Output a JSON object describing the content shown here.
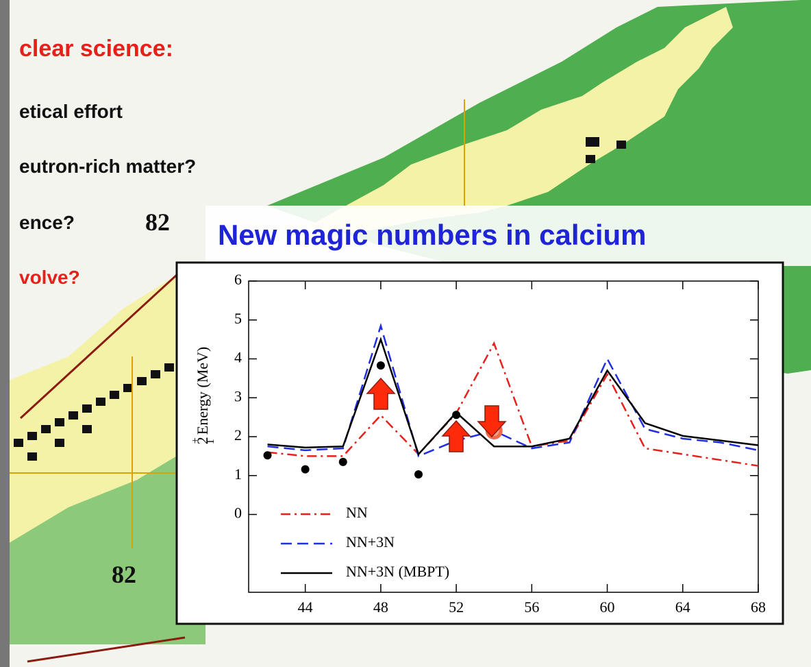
{
  "slide": {
    "heading": "clear science:",
    "bullets": [
      "etical effort",
      "eutron-rich matter?",
      "ence?",
      "volve?"
    ],
    "label_top": "82",
    "label_bottom": "82",
    "banner": "New magic numbers in calcium"
  },
  "chart_data": {
    "type": "line",
    "y_label": {
      "base": "2",
      "sup": "+",
      "sub": "1",
      "text": "Energy (MeV)"
    },
    "x": [
      42,
      44,
      46,
      48,
      50,
      52,
      54,
      56,
      58,
      60,
      62,
      64,
      66,
      68
    ],
    "xlim": [
      41,
      68
    ],
    "xticks": [
      44,
      48,
      52,
      56,
      60,
      64,
      68
    ],
    "ylim": [
      -2,
      6
    ],
    "yticks": [
      0,
      1,
      2,
      3,
      4,
      5,
      6
    ],
    "series": [
      {
        "name": "NN",
        "color": "#e8201c",
        "dash": "dashdot",
        "values": [
          1.6,
          1.5,
          1.5,
          2.55,
          1.55,
          2.6,
          4.4,
          1.75,
          1.9,
          3.6,
          1.7,
          1.55,
          1.4,
          1.25
        ]
      },
      {
        "name": "NN+3N",
        "color": "#1f2ee0",
        "dash": "dash",
        "values": [
          1.75,
          1.65,
          1.7,
          4.85,
          1.5,
          1.9,
          2.15,
          1.7,
          1.85,
          4.0,
          2.2,
          1.95,
          1.85,
          1.65
        ]
      },
      {
        "name": "NN+3N (MBPT)",
        "color": "#000000",
        "dash": "solid",
        "values": [
          1.8,
          1.72,
          1.75,
          4.5,
          1.55,
          2.62,
          1.75,
          1.75,
          1.95,
          3.7,
          2.35,
          2.02,
          1.9,
          1.78
        ]
      }
    ],
    "points": {
      "color": "#000000",
      "x": [
        42,
        44,
        46,
        48,
        50,
        52
      ],
      "values": [
        1.52,
        1.16,
        1.35,
        3.83,
        1.03,
        2.56
      ]
    },
    "highlight": {
      "color": "#f06a4a",
      "x": 54,
      "value": 2.15
    }
  }
}
